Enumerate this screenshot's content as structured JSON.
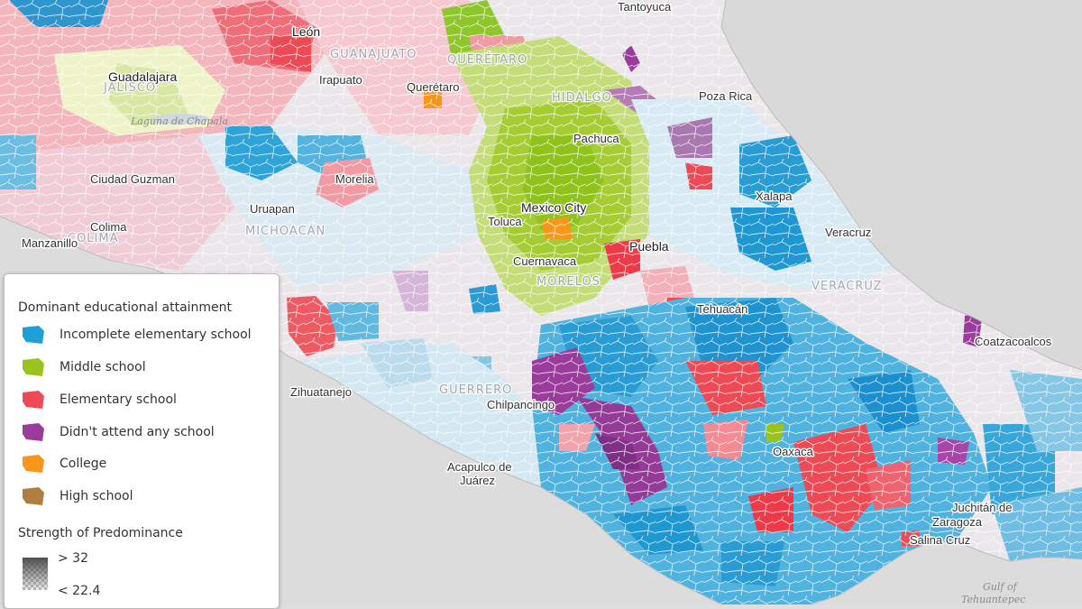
{
  "map": {
    "cities": [
      {
        "name": "Tantoyuca",
        "cls": "city"
      },
      {
        "name": "León",
        "cls": "city major"
      },
      {
        "name": "Guadalajara",
        "cls": "city major"
      },
      {
        "name": "Irapuato",
        "cls": "city"
      },
      {
        "name": "Querétaro",
        "cls": "city"
      },
      {
        "name": "Poza Rica",
        "cls": "city"
      },
      {
        "name": "Pachuca",
        "cls": "city"
      },
      {
        "name": "Ciudad Guzman",
        "cls": "city"
      },
      {
        "name": "Morelia",
        "cls": "city"
      },
      {
        "name": "Xalapa",
        "cls": "city"
      },
      {
        "name": "Uruapan",
        "cls": "city"
      },
      {
        "name": "Mexico City",
        "cls": "city major"
      },
      {
        "name": "Colima",
        "cls": "city"
      },
      {
        "name": "Toluca",
        "cls": "city"
      },
      {
        "name": "Veracruz",
        "cls": "city"
      },
      {
        "name": "Manzanillo",
        "cls": "city"
      },
      {
        "name": "Puebla",
        "cls": "city major"
      },
      {
        "name": "Cuernavaca",
        "cls": "city"
      },
      {
        "name": "Tehuacán",
        "cls": "city"
      },
      {
        "name": "Coatzacoalcos",
        "cls": "city"
      },
      {
        "name": "Zihuatanejo",
        "cls": "city"
      },
      {
        "name": "Chilpancingo",
        "cls": "city"
      },
      {
        "name": "Oaxaca",
        "cls": "city"
      },
      {
        "name": "Acapulco de",
        "cls": "city"
      },
      {
        "name": "Juárez",
        "cls": "city"
      },
      {
        "name": "Juchitán de",
        "cls": "city"
      },
      {
        "name": "Zaragoza",
        "cls": "city"
      },
      {
        "name": "Salina Cruz",
        "cls": "city"
      }
    ],
    "regions": [
      "GUANAJUATO",
      "QUERÉTARO",
      "JALISCO",
      "HIDALGO",
      "MICHOACÁN",
      "COLIMA",
      "MORELOS",
      "VERACRUZ",
      "GUERRERO"
    ],
    "water": [
      "Laguna de Chapala",
      "Gulf of",
      "Tehuantepec"
    ]
  },
  "legend": {
    "title": "Dominant educational attainment",
    "items": [
      {
        "label": "Incomplete elementary school",
        "color": "#1ea0d6"
      },
      {
        "label": "Middle school",
        "color": "#99c41e"
      },
      {
        "label": "Elementary school",
        "color": "#ee4a55"
      },
      {
        "label": "Didn't attend any school",
        "color": "#9b3c9c"
      },
      {
        "label": "College",
        "color": "#f8961a"
      },
      {
        "label": "High school",
        "color": "#b07e3e"
      }
    ],
    "strength_title": "Strength of Predominance",
    "strength_high": "> 32",
    "strength_low": "< 22.4"
  }
}
